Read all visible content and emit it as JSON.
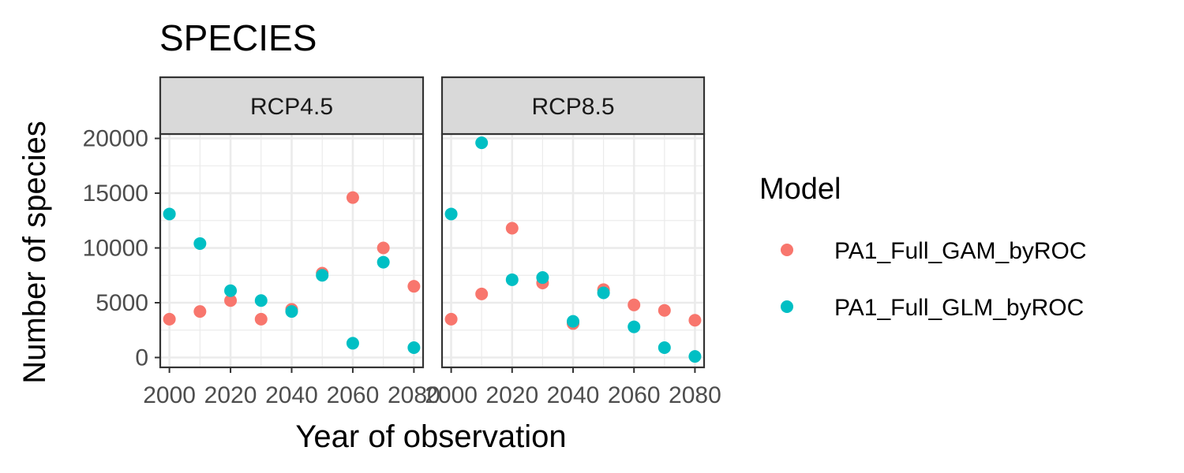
{
  "chart_data": {
    "type": "scatter",
    "title": "SPECIES",
    "xlabel": "Year of observation",
    "ylabel": "Number of species",
    "xlim": [
      1997,
      2083
    ],
    "ylim": [
      -900,
      20400
    ],
    "x_ticks": [
      2000,
      2020,
      2040,
      2060,
      2080
    ],
    "y_ticks": [
      0,
      5000,
      10000,
      15000,
      20000
    ],
    "grid": true,
    "legend": {
      "title": "Model",
      "position": "right"
    },
    "colors": {
      "PA1_Full_GAM_byROC": "#F8766D",
      "PA1_Full_GLM_byROC": "#00BFC4"
    },
    "panels": [
      {
        "label": "RCP4.5",
        "series": [
          {
            "name": "PA1_Full_GAM_byROC",
            "x": [
              2000,
              2010,
              2020,
              2030,
              2040,
              2050,
              2060,
              2070,
              2080
            ],
            "y": [
              3500,
              4200,
              5200,
              3500,
              4400,
              7700,
              14600,
              10000,
              6500
            ]
          },
          {
            "name": "PA1_Full_GLM_byROC",
            "x": [
              2000,
              2010,
              2020,
              2030,
              2040,
              2050,
              2060,
              2070,
              2080
            ],
            "y": [
              13100,
              10400,
              6100,
              5200,
              4200,
              7500,
              1300,
              8700,
              900
            ]
          }
        ]
      },
      {
        "label": "RCP8.5",
        "series": [
          {
            "name": "PA1_Full_GAM_byROC",
            "x": [
              2000,
              2010,
              2020,
              2030,
              2040,
              2050,
              2060,
              2070,
              2080
            ],
            "y": [
              3500,
              5800,
              11800,
              6800,
              3100,
              6200,
              4800,
              4300,
              3400
            ]
          },
          {
            "name": "PA1_Full_GLM_byROC",
            "x": [
              2000,
              2010,
              2020,
              2030,
              2040,
              2050,
              2060,
              2070,
              2080
            ],
            "y": [
              13100,
              19600,
              7100,
              7300,
              3300,
              5900,
              2800,
              900,
              100
            ]
          }
        ]
      }
    ]
  }
}
